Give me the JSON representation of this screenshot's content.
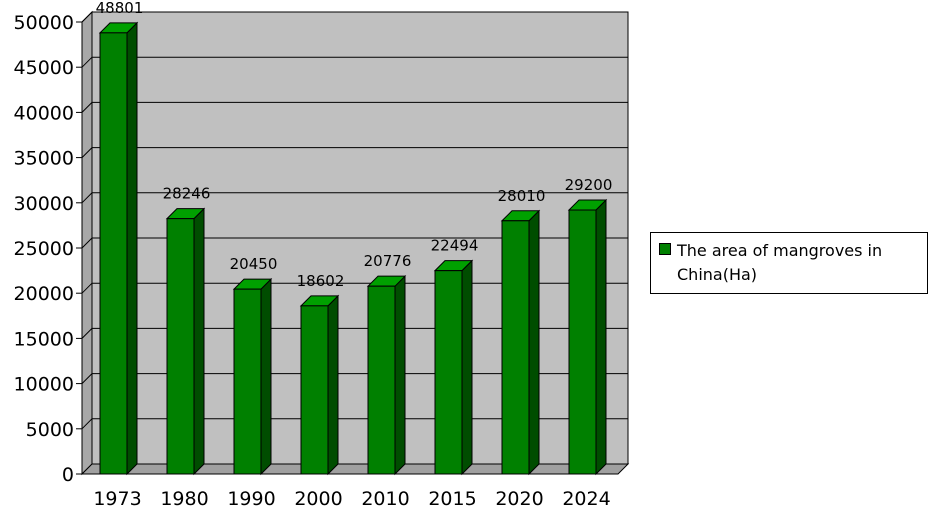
{
  "chart_data": {
    "type": "bar",
    "categories": [
      "1973",
      "1980",
      "1990",
      "2000",
      "2010",
      "2015",
      "2020",
      "2024"
    ],
    "series": [
      {
        "name": "The area of mangroves in China(Ha)",
        "values": [
          48801,
          28246,
          20450,
          18602,
          20776,
          22494,
          28010,
          29200
        ]
      }
    ],
    "data_labels": [
      "48801",
      "28246",
      "20450",
      "18602",
      "20776",
      "22494",
      "28010",
      "29200"
    ],
    "yticks": [
      "0",
      "5000",
      "10000",
      "15000",
      "20000",
      "25000",
      "30000",
      "35000",
      "40000",
      "45000",
      "50000"
    ],
    "ylim": [
      0,
      50000
    ],
    "grid": true,
    "legend_position": "right",
    "colors": {
      "bar_front": "#008000",
      "bar_side": "#004d00",
      "bar_top": "#00a000",
      "plot_bg": "#c0c0c0"
    }
  }
}
